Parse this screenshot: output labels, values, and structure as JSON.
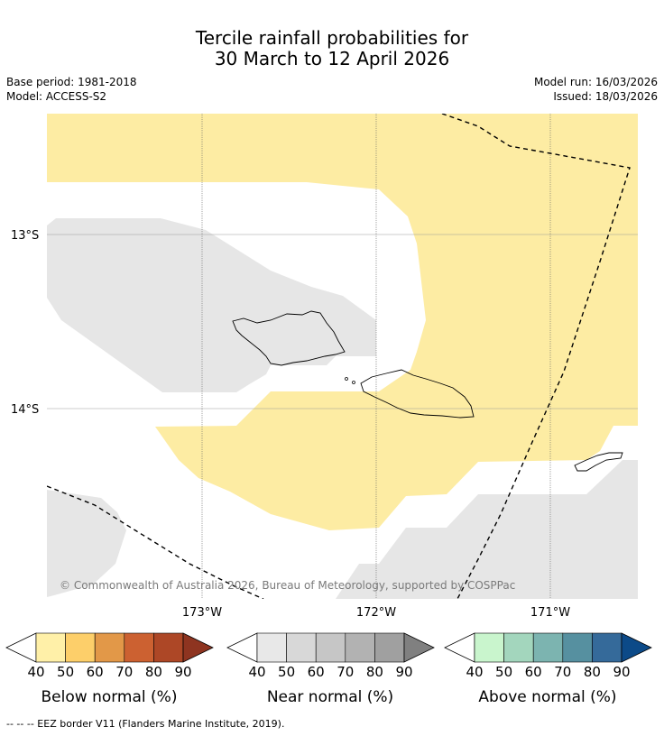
{
  "header": {
    "title_line1": "Tercile rainfall probabilities for",
    "title_line2": "30 March to 12 April 2026",
    "base_period": "Base period: 1981-2018",
    "model": "Model: ACCESS-S2",
    "model_run": "Model run: 16/03/2026",
    "issued": "Issued: 18/03/2026"
  },
  "map": {
    "lat_labels": [
      "13°S",
      "14°S"
    ],
    "lon_labels": [
      "173°W",
      "172°W",
      "171°W"
    ],
    "copyright": "© Commonwealth of Australia 2026, Bureau of Meteorology, supported by COSPPac",
    "regions": {
      "below_normal_40_50": "#fdeca3",
      "near_normal_40_50": "#e6e6e6"
    }
  },
  "legends": [
    {
      "title": "Below normal (%)",
      "ticks": [
        "40",
        "50",
        "60",
        "70",
        "80",
        "90"
      ],
      "colors": [
        "#fff0a8",
        "#fdcf6a",
        "#e29848",
        "#cc6131",
        "#ad4726",
        "#8e3420"
      ]
    },
    {
      "title": "Near normal (%)",
      "ticks": [
        "40",
        "50",
        "60",
        "70",
        "80",
        "90"
      ],
      "colors": [
        "#e8e8e8",
        "#d8d8d8",
        "#c6c6c6",
        "#b2b2b2",
        "#a0a0a0",
        "#808080"
      ]
    },
    {
      "title": "Above normal (%)",
      "ticks": [
        "40",
        "50",
        "60",
        "70",
        "80",
        "90"
      ],
      "colors": [
        "#c9f5cd",
        "#a3d6bd",
        "#7cb4b0",
        "#5690a0",
        "#356a9a",
        "#0c4a88"
      ]
    }
  ],
  "footer": "--  --  -- EEZ border V11 (Flanders Marine Institute, 2019)."
}
